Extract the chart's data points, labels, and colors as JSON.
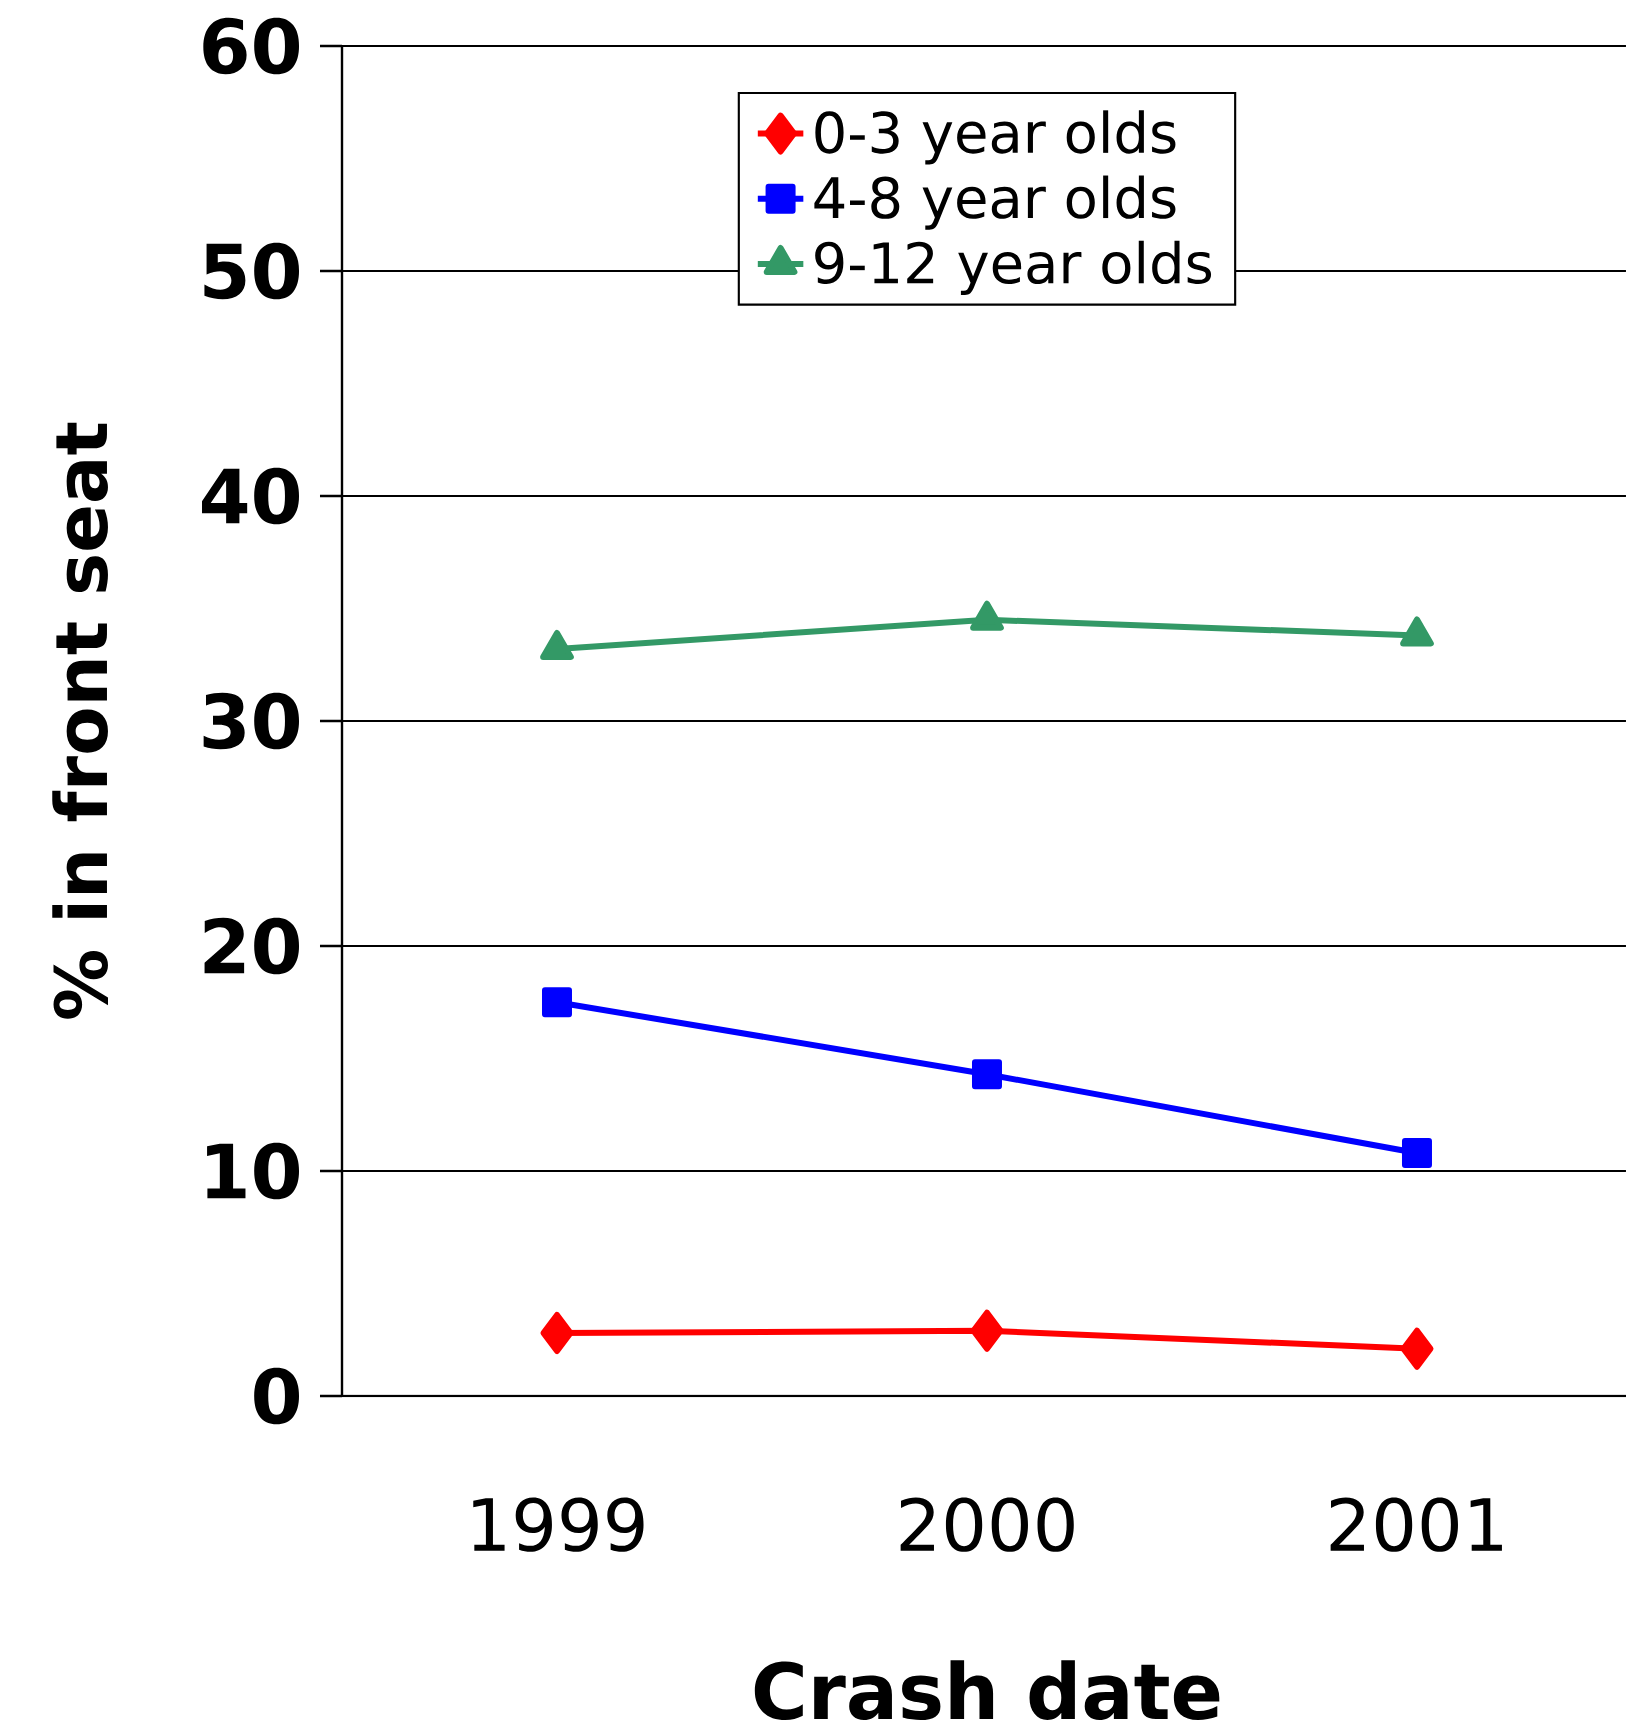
{
  "chart_data": {
    "type": "line",
    "xlabel": "Crash date",
    "ylabel": "% in front seat",
    "categories": [
      "1999",
      "2000",
      "2001"
    ],
    "series": [
      {
        "name": "0-3 year olds",
        "color": "#ff0000",
        "marker": "diamond",
        "values": [
          2.8,
          2.9,
          2.1
        ]
      },
      {
        "name": "4-8 year olds",
        "color": "#0000ff",
        "marker": "square",
        "values": [
          17.5,
          14.3,
          10.8
        ]
      },
      {
        "name": "9-12 year olds",
        "color": "#339966",
        "marker": "triangle",
        "values": [
          33.2,
          34.5,
          33.8
        ]
      }
    ],
    "ylim": [
      0,
      60
    ],
    "yticks": [
      0,
      10,
      20,
      30,
      40,
      50,
      60
    ],
    "grid": "y",
    "legend": "top"
  }
}
